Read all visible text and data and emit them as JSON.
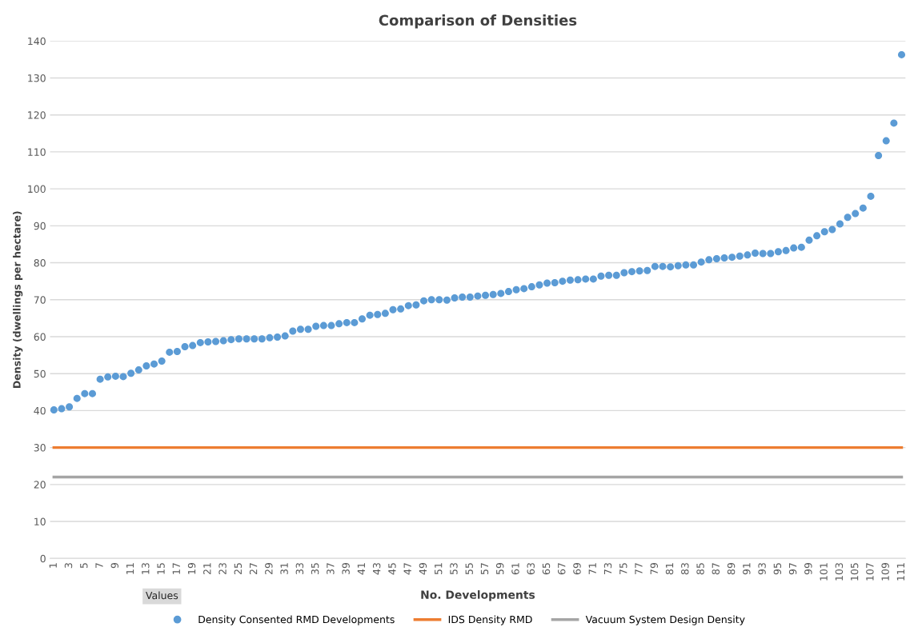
{
  "chart_data": {
    "type": "scatter",
    "title": "Comparison of Densities",
    "xlabel": "No. Developments",
    "ylabel": "Density (dwellings per hectare)",
    "categories": [
      "1",
      null,
      "3",
      null,
      "5",
      null,
      "7",
      null,
      "9",
      null,
      "11",
      null,
      "13",
      null,
      "15",
      null,
      "17",
      null,
      "19",
      null,
      "21",
      null,
      "23",
      null,
      "25",
      null,
      "27",
      null,
      "29",
      null,
      "31",
      null,
      "33",
      null,
      "35",
      null,
      "37",
      null,
      "39",
      null,
      "41",
      null,
      "43",
      null,
      "45",
      null,
      "47",
      null,
      "49",
      null,
      "51",
      null,
      "53",
      null,
      "55",
      null,
      "57",
      null,
      "59",
      null,
      "61",
      null,
      "63",
      null,
      "65",
      null,
      "67",
      null,
      "69",
      null,
      "71",
      null,
      "73",
      null,
      "75",
      null,
      "77",
      null,
      "79",
      null,
      "81",
      null,
      "83",
      null,
      "85",
      null,
      "87",
      null,
      "89",
      null,
      "91",
      null,
      "93",
      null,
      "95",
      null,
      "97",
      null,
      "99",
      null,
      "101",
      null,
      "103",
      null,
      "105",
      null,
      "107",
      null,
      "109",
      null,
      "111"
    ],
    "series": [
      {
        "name": "Density Consented RMD Developments",
        "color": "#5b9bd5",
        "marker": "circle",
        "values": [
          40.2,
          40.5,
          41,
          43.3,
          44.6,
          44.6,
          48.5,
          49.1,
          49.3,
          49.2,
          50.1,
          51,
          52.1,
          52.6,
          53.4,
          55.8,
          56,
          57.3,
          57.6,
          58.4,
          58.6,
          58.7,
          58.9,
          59.2,
          59.4,
          59.4,
          59.4,
          59.4,
          59.7,
          59.9,
          60.2,
          61.5,
          62,
          62,
          62.8,
          63,
          63,
          63.5,
          63.8,
          63.8,
          64.8,
          65.8,
          66,
          66.3,
          67.3,
          67.5,
          68.4,
          68.6,
          69.7,
          70,
          70,
          69.9,
          70.5,
          70.7,
          70.7,
          71,
          71.2,
          71.4,
          71.7,
          72.2,
          72.7,
          73,
          73.5,
          74,
          74.5,
          74.6,
          75,
          75.3,
          75.4,
          75.6,
          75.6,
          76.4,
          76.6,
          76.6,
          77.3,
          77.6,
          77.8,
          77.9,
          79,
          79,
          78.9,
          79.2,
          79.4,
          79.4,
          80.2,
          80.8,
          81.1,
          81.3,
          81.5,
          81.8,
          82.1,
          82.6,
          82.5,
          82.5,
          83,
          83.3,
          84,
          84.2,
          86.1,
          87.3,
          88.4,
          89,
          90.5,
          92.3,
          93.3,
          94.8,
          98,
          109,
          113,
          117.8,
          136.3
        ]
      },
      {
        "name": "IDS Density RMD",
        "color": "#ed7d31",
        "type": "line",
        "marker": "none",
        "values": [
          30,
          30,
          30,
          30,
          30,
          30,
          30,
          30,
          30,
          30,
          30,
          30,
          30,
          30,
          30,
          30,
          30,
          30,
          30,
          30,
          30,
          30,
          30,
          30,
          30,
          30,
          30,
          30,
          30,
          30,
          30,
          30,
          30,
          30,
          30,
          30,
          30,
          30,
          30,
          30,
          30,
          30,
          30,
          30,
          30,
          30,
          30,
          30,
          30,
          30,
          30,
          30,
          30,
          30,
          30,
          30,
          30,
          30,
          30,
          30,
          30,
          30,
          30,
          30,
          30,
          30,
          30,
          30,
          30,
          30,
          30,
          30,
          30,
          30,
          30,
          30,
          30,
          30,
          30,
          30,
          30,
          30,
          30,
          30,
          30,
          30,
          30,
          30,
          30,
          30,
          30,
          30,
          30,
          30,
          30,
          30,
          30,
          30,
          30,
          30,
          30,
          30,
          30,
          30,
          30,
          30,
          30,
          30,
          30,
          30,
          30
        ]
      },
      {
        "name": "Vacuum System Design Density",
        "color": "#a5a5a5",
        "type": "line",
        "marker": "none",
        "values": [
          22,
          22,
          22,
          22,
          22,
          22,
          22,
          22,
          22,
          22,
          22,
          22,
          22,
          22,
          22,
          22,
          22,
          22,
          22,
          22,
          22,
          22,
          22,
          22,
          22,
          22,
          22,
          22,
          22,
          22,
          22,
          22,
          22,
          22,
          22,
          22,
          22,
          22,
          22,
          22,
          22,
          22,
          22,
          22,
          22,
          22,
          22,
          22,
          22,
          22,
          22,
          22,
          22,
          22,
          22,
          22,
          22,
          22,
          22,
          22,
          22,
          22,
          22,
          22,
          22,
          22,
          22,
          22,
          22,
          22,
          22,
          22,
          22,
          22,
          22,
          22,
          22,
          22,
          22,
          22,
          22,
          22,
          22,
          22,
          22,
          22,
          22,
          22,
          22,
          22,
          22,
          22,
          22,
          22,
          22,
          22,
          22,
          22,
          22,
          22,
          22,
          22,
          22,
          22,
          22,
          22,
          22,
          22,
          22,
          22,
          22
        ]
      }
    ],
    "ylim": [
      0,
      140
    ],
    "yticks": [
      0,
      10,
      20,
      30,
      40,
      50,
      60,
      70,
      80,
      90,
      100,
      110,
      120,
      130,
      140
    ],
    "grid": "y",
    "legend": "bottom",
    "line_style": "solid",
    "annotations": [
      "Values"
    ]
  }
}
